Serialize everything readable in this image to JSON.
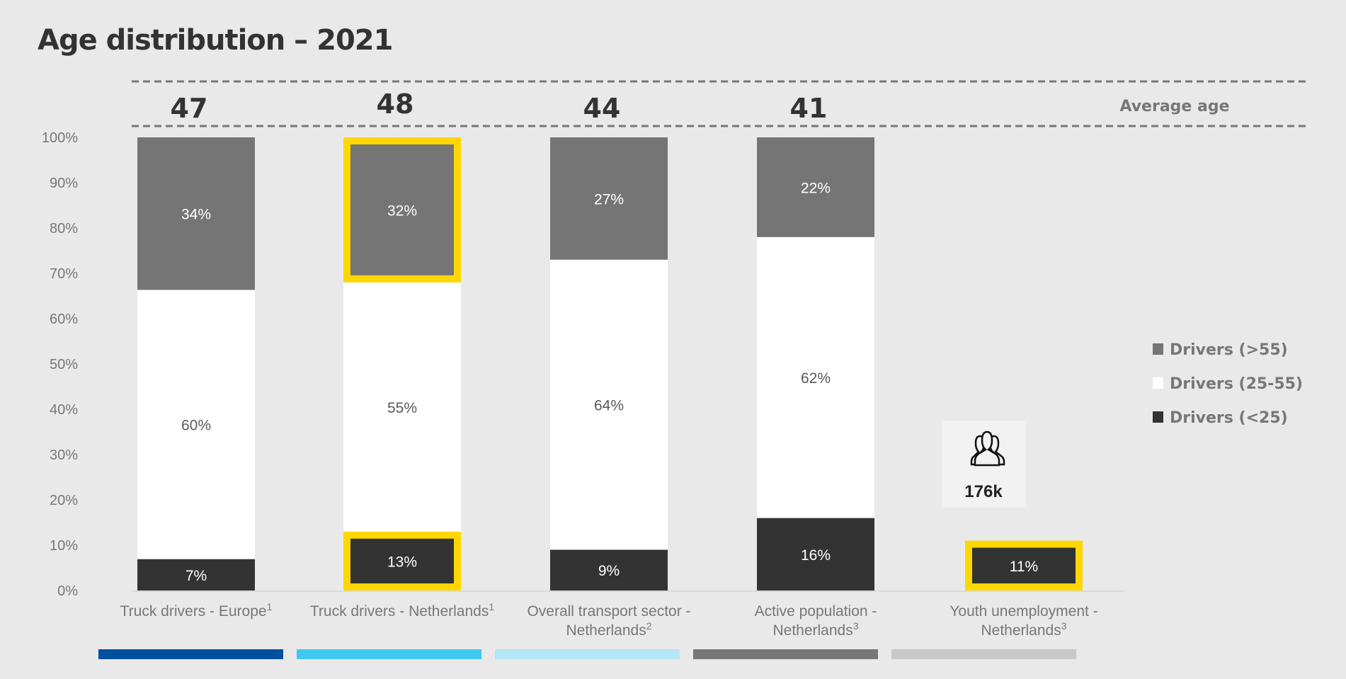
{
  "chart_data": {
    "type": "bar",
    "stacked": true,
    "title": "Age distribution – 2021",
    "ylim": [
      0,
      100
    ],
    "yticks": [
      "0%",
      "10%",
      "20%",
      "30%",
      "40%",
      "50%",
      "60%",
      "70%",
      "80%",
      "90%",
      "100%"
    ],
    "categories": [
      {
        "line1": "Truck drivers - Europe",
        "sup1": "1",
        "line2": "",
        "sup2": ""
      },
      {
        "line1": "Truck drivers - Netherlands",
        "sup1": "1",
        "line2": "",
        "sup2": ""
      },
      {
        "line1": "Overall transport sector -",
        "sup1": "",
        "line2": "Netherlands",
        "sup2": "2"
      },
      {
        "line1": "Active population -",
        "sup1": "",
        "line2": "Netherlands",
        "sup2": "3"
      },
      {
        "line1": "Youth unemployment -",
        "sup1": "",
        "line2": "Netherlands",
        "sup2": "3"
      }
    ],
    "series": [
      {
        "name": "Drivers (<25)",
        "color": "#333333",
        "label_color": "#ffffff",
        "values": [
          7,
          13,
          9,
          16,
          11
        ],
        "labels": [
          "7%",
          "13%",
          "9%",
          "16%",
          "11%"
        ]
      },
      {
        "name": "Drivers (25-55)",
        "color": "#ffffff",
        "label_color": "#595959",
        "values": [
          60,
          55,
          64,
          62,
          null
        ],
        "labels": [
          "60%",
          "55%",
          "64%",
          "62%",
          ""
        ]
      },
      {
        "name": "Drivers (>55)",
        "color": "#757575",
        "label_color": "#ffffff",
        "values": [
          34,
          32,
          27,
          22,
          null
        ],
        "labels": [
          "34%",
          "32%",
          "27%",
          "22%",
          ""
        ]
      }
    ],
    "legend_order": [
      2,
      1,
      0
    ],
    "legend_position": "right",
    "highlighted": [
      {
        "series": 2,
        "category": 1
      },
      {
        "series": 0,
        "category": 1
      },
      {
        "series": 0,
        "category": 4
      }
    ],
    "highlight_color": "#ffd700",
    "average_age": {
      "label": "Average age",
      "values": [
        "47",
        "48",
        "44",
        "41"
      ]
    },
    "callout": {
      "icon": "people-group-icon",
      "value": "176k"
    },
    "category_color_strips": [
      "#0050a0",
      "#40c8f0",
      "#b3e6f7",
      "#777777",
      "#c8c8c8"
    ],
    "grid": false
  }
}
